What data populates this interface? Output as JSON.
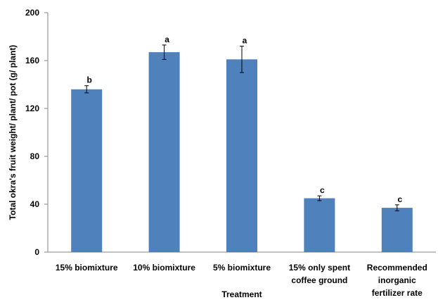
{
  "chart_data": {
    "type": "bar",
    "title": "",
    "xlabel": "Treatment",
    "ylabel": "Total okra's fruit weight/ plant/ pot (g/ plant)",
    "ylim": [
      0,
      200
    ],
    "yticks": [
      0,
      40,
      80,
      120,
      160,
      200
    ],
    "grid": false,
    "categories": [
      [
        "15% biomixture"
      ],
      [
        "10% biomixture"
      ],
      [
        "5% biomixture"
      ],
      [
        "15% only spent",
        "coffee ground"
      ],
      [
        "Recommended",
        "inorganic",
        "fertilizer rate"
      ]
    ],
    "values": [
      136,
      167,
      161,
      45,
      37
    ],
    "error": [
      3,
      6,
      11,
      2,
      2.5
    ],
    "annotations": [
      "b",
      "a",
      "a",
      "c",
      "c"
    ],
    "bar_color": "#4f81bd"
  }
}
